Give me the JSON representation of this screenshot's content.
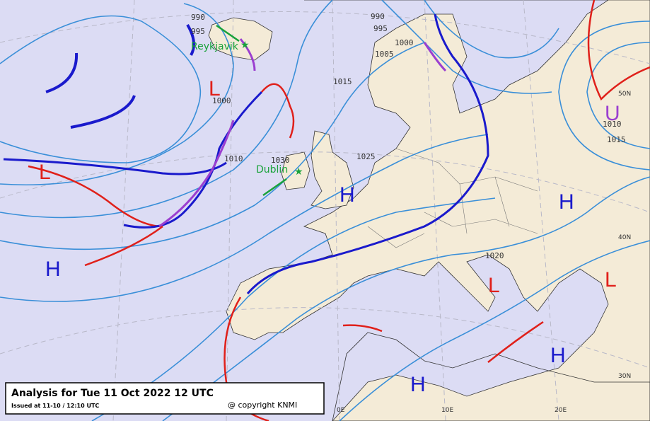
{
  "caption": {
    "title": "Analysis for Tue 11 Oct 2022 12 UTC",
    "issued": "Issued at 11-10 / 12:10 UTC",
    "copyright": "@ copyright KNMI"
  },
  "cities": [
    "Reykjavik",
    "Dublin"
  ],
  "isobar_labels": [
    "990",
    "995",
    "1000",
    "1010",
    "1030",
    "1015",
    "1025",
    "990",
    "995",
    "1000",
    "1005",
    "1020",
    "1010",
    "1015"
  ],
  "pressure_centers": [
    {
      "label": "H",
      "color": "#1a1acc"
    },
    {
      "label": "H",
      "color": "#1a1acc"
    },
    {
      "label": "H",
      "color": "#1a1acc"
    },
    {
      "label": "H",
      "color": "#1a1acc"
    },
    {
      "label": "H",
      "color": "#1a1acc"
    },
    {
      "label": "L",
      "color": "#e0201a"
    },
    {
      "label": "L",
      "color": "#e0201a"
    },
    {
      "label": "L",
      "color": "#e0201a"
    },
    {
      "label": "L",
      "color": "#e0201a"
    },
    {
      "label": "U",
      "color": "#9b3fd0"
    }
  ],
  "graticule_labels": [
    "50N",
    "40N",
    "30N",
    "0E",
    "10E",
    "20E"
  ]
}
